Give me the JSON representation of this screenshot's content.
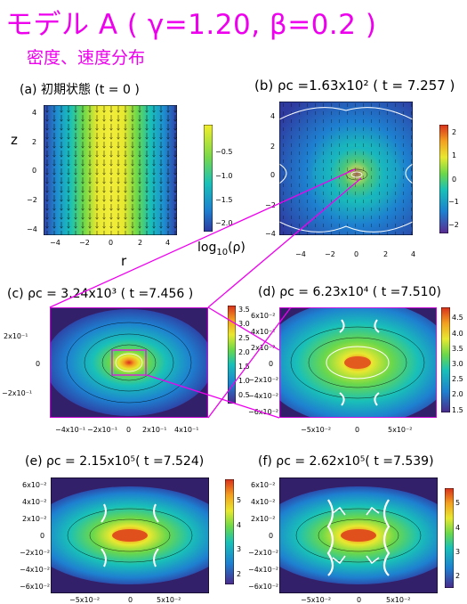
{
  "title": "モデル A ( γ=1.20, β=0.2 )",
  "subtitle": "密度、速度分布",
  "colors": {
    "accent": "#ee00ee"
  },
  "panels": {
    "a": {
      "label": "(a)  初期状態 (t = 0 )",
      "yticks": [
        "4",
        "2",
        "0",
        "−2",
        "−4"
      ],
      "xticks": [
        "−4",
        "−2",
        "0",
        "2",
        "4"
      ],
      "cbar": [
        "−0.5",
        "−1.0",
        "−1.5",
        "−2.0"
      ],
      "zlabel": "z",
      "rlabel": "r",
      "cbar_label": "log10(ρ)"
    },
    "b": {
      "label": "(b) ρc =1.63x10² ( t = 7.257 )",
      "yticks": [
        "4",
        "2",
        "0",
        "−2",
        "−4"
      ],
      "xticks": [
        "−4",
        "−2",
        "0",
        "2",
        "4"
      ],
      "cbar": [
        "2",
        "1",
        "0",
        "−1",
        "−2"
      ]
    },
    "c": {
      "label": "(c) ρc = 3.24x10³ ( t =7.456 )",
      "yticks": [
        "2x10⁻¹",
        "0",
        "−2x10⁻¹"
      ],
      "xticks": [
        "−4x10⁻¹",
        "−2x10⁻¹",
        "0",
        "2x10⁻¹",
        "4x10⁻¹"
      ],
      "cbar": [
        "3.5",
        "3.0",
        "2.5",
        "2.0",
        "1.5",
        "1.0",
        "0.5"
      ]
    },
    "d": {
      "label": "(d) ρc = 6.23x10⁴ ( t =7.510)",
      "yticks": [
        "6x10⁻²",
        "4x10⁻²",
        "2x10⁻²",
        "0",
        "−2x10⁻²",
        "−4x10⁻²",
        "−6x10⁻²"
      ],
      "xticks": [
        "−5x10⁻²",
        "0",
        "5x10⁻²"
      ],
      "cbar": [
        "4.5",
        "4.0",
        "3.5",
        "3.0",
        "2.5",
        "2.0",
        "1.5"
      ]
    },
    "e": {
      "label": "(e) ρc = 2.15x10⁵( t =7.524)",
      "yticks": [
        "6x10⁻²",
        "4x10⁻²",
        "2x10⁻²",
        "0",
        "−2x10⁻²",
        "−4x10⁻²",
        "−6x10⁻²"
      ],
      "xticks": [
        "−5x10⁻²",
        "0",
        "5x10⁻²"
      ],
      "cbar": [
        "5",
        "4",
        "3",
        "2"
      ]
    },
    "f": {
      "label": "(f) ρc = 2.62x10⁵( t =7.539)",
      "yticks": [
        "6x10⁻²",
        "4x10⁻²",
        "2x10⁻²",
        "0",
        "−2x10⁻²",
        "−4x10⁻²",
        "−6x10⁻²"
      ],
      "xticks": [
        "−5x10⁻²",
        "0",
        "5x10⁻²"
      ],
      "cbar": [
        "5",
        "4",
        "3",
        "2"
      ]
    }
  }
}
